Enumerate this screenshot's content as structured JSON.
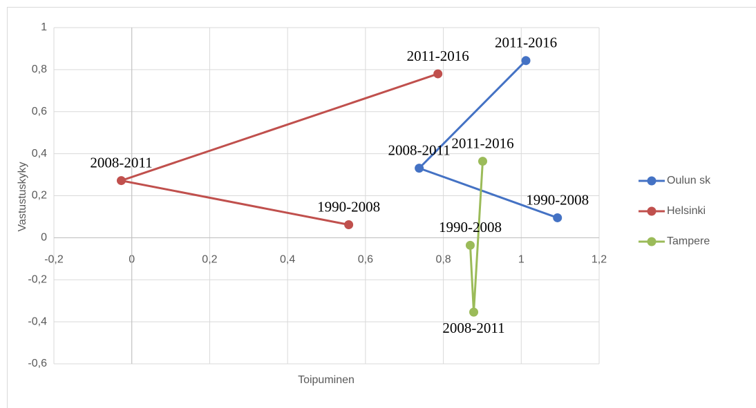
{
  "chart_data": {
    "type": "scatter-line",
    "x_label": "Toipuminen",
    "y_label": "Vastustuskyky",
    "xlim": [
      -0.2,
      1.2
    ],
    "xticks": [
      {
        "value": -0.2,
        "label": "-0,2"
      },
      0,
      {
        "value": 0.2,
        "label": "0,2"
      },
      {
        "value": 0.4,
        "label": "0,4"
      },
      {
        "value": 0.6,
        "label": "0,6"
      },
      {
        "value": 0.8,
        "label": "0,8"
      },
      1,
      {
        "value": 1.2,
        "label": "1,2"
      }
    ],
    "ylim": [
      -0.6,
      1
    ],
    "yticks": [
      {
        "value": -0.6,
        "label": "-0,6"
      },
      {
        "value": -0.4,
        "label": "-0,4"
      },
      {
        "value": -0.2,
        "label": "-0,2"
      },
      0,
      {
        "value": 0.2,
        "label": "0,2"
      },
      {
        "value": 0.4,
        "label": "0,4"
      },
      {
        "value": 0.6,
        "label": "0,6"
      },
      {
        "value": 0.8,
        "label": "0,8"
      },
      1
    ],
    "grid": true,
    "legend": "right",
    "series": [
      {
        "name": "Oulun sk",
        "color": "#4472c4",
        "x": [
          1.093,
          0.738,
          1.012
        ],
        "values": [
          0.095,
          0.331,
          0.843
        ],
        "point_labels": [
          "1990-2008",
          "2008-2011",
          "2011-2016"
        ]
      },
      {
        "name": "Helsinki",
        "color": "#c0504d",
        "x": [
          0.557,
          -0.027,
          0.786
        ],
        "values": [
          0.062,
          0.272,
          0.78
        ],
        "point_labels": [
          "1990-2008",
          "2008-2011",
          "2011-2016"
        ]
      },
      {
        "name": "Tampere",
        "color": "#9bbb59",
        "x": [
          0.869,
          0.878,
          0.901
        ],
        "values": [
          -0.036,
          -0.354,
          0.364
        ],
        "point_labels": [
          "1990-2008",
          "2008-2011",
          "2011-2016"
        ]
      }
    ]
  }
}
